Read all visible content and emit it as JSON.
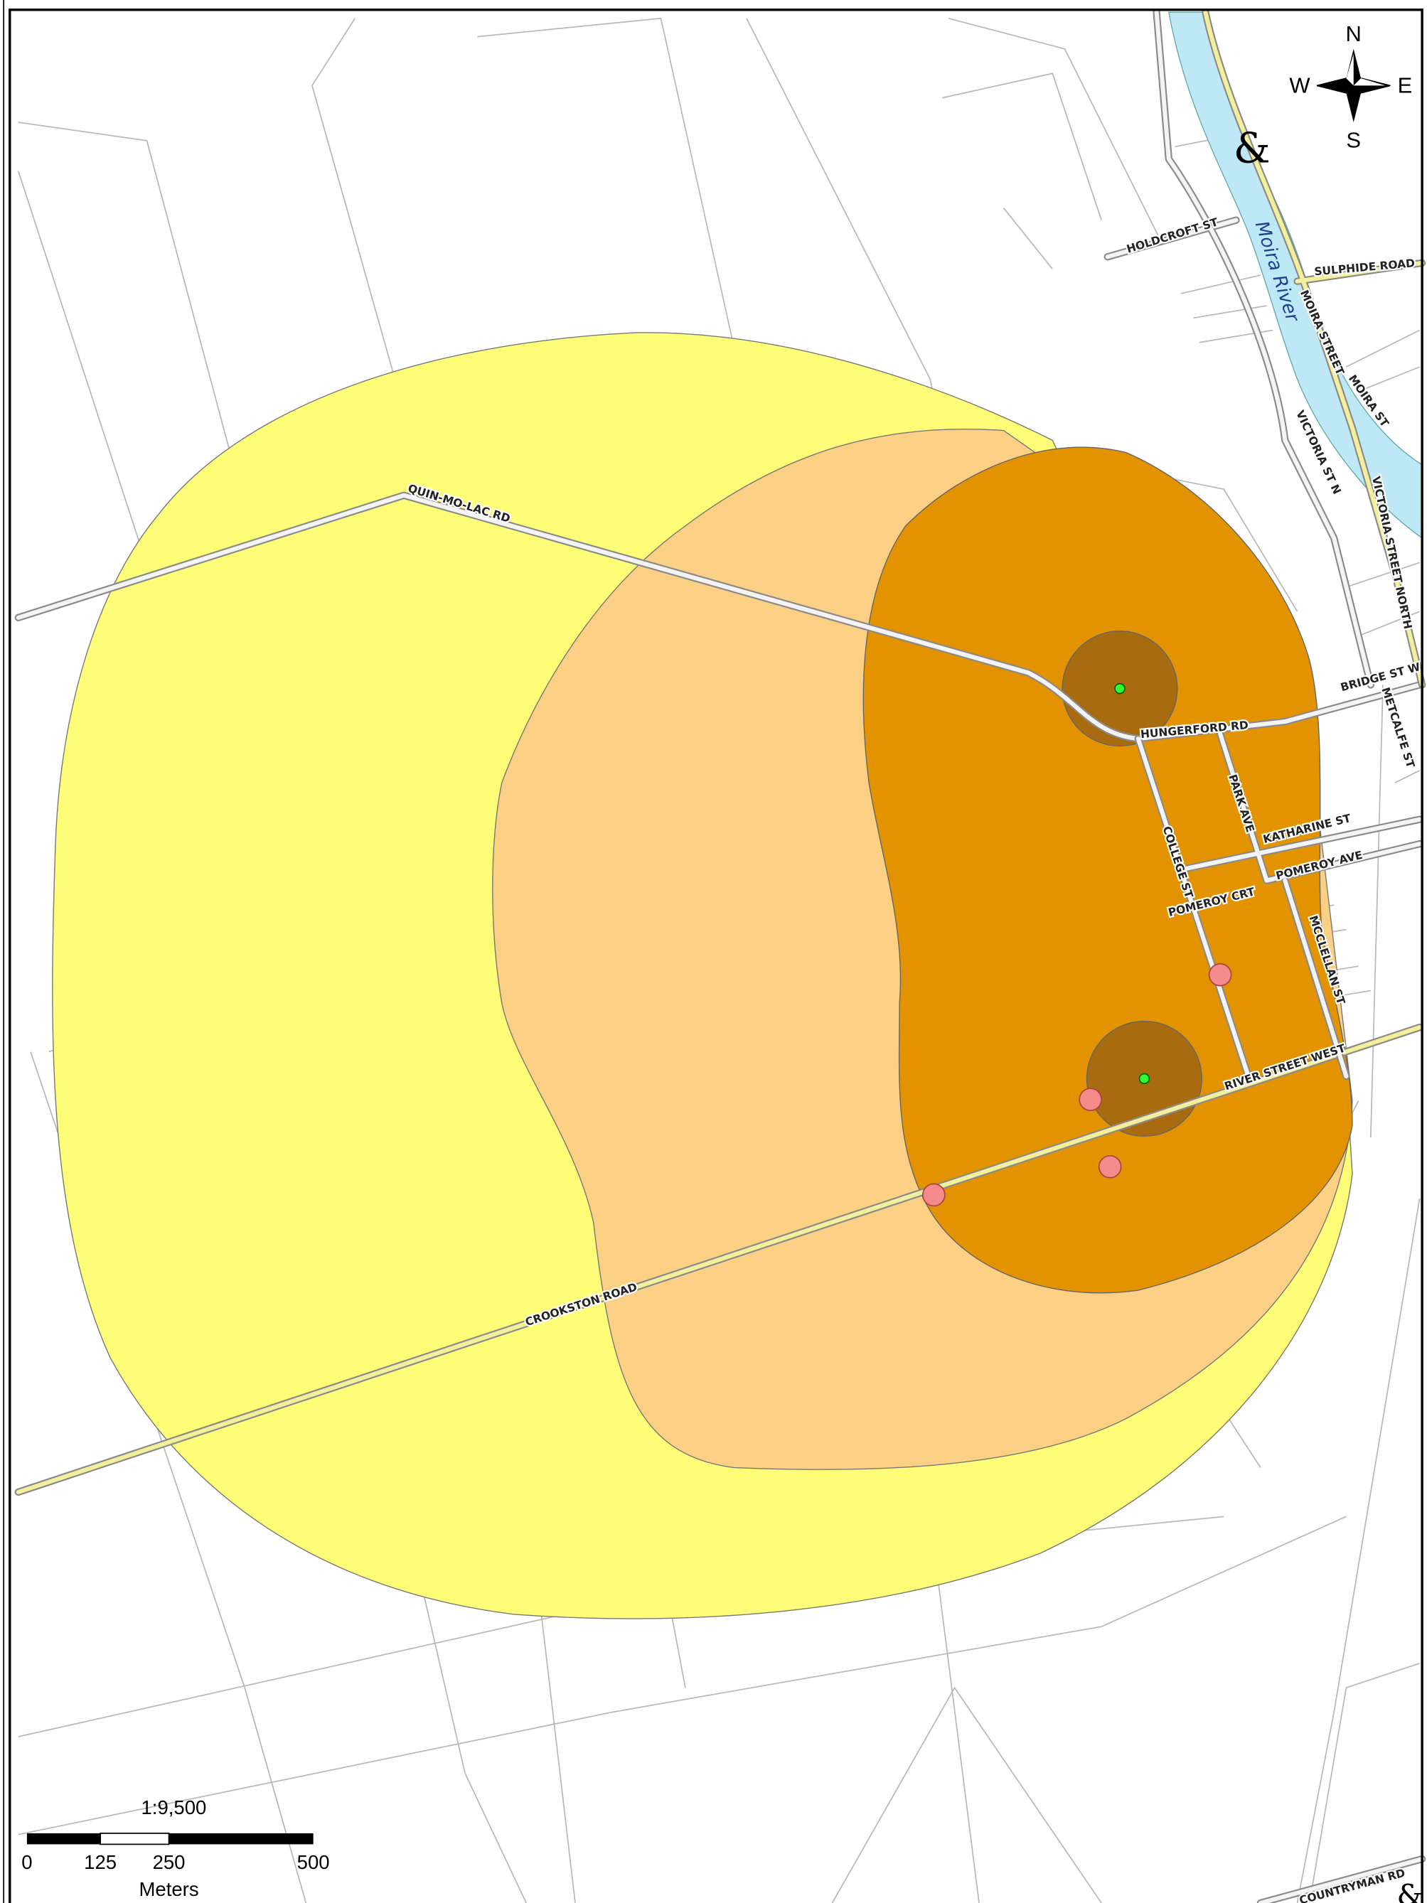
{
  "map": {
    "compass": {
      "n": "N",
      "e": "E",
      "s": "S",
      "w": "W"
    },
    "symbol": "&",
    "labels": [
      "QUIN-MO-LAC RD",
      "HUNGERFORD RD",
      "COLLEGE ST",
      "PARK AVE",
      "KATHARINE ST",
      "POMEROY AVE",
      "POMEROY CRT",
      "MCCLELLAN ST",
      "RIVER STREET WEST",
      "CROOKSTON ROAD",
      "BRIDGE ST W",
      "METCALFE ST",
      "HOLDCROFT ST",
      "SULPHIDE ROAD",
      "MOIRA STREET",
      "MOIRA ST",
      "VICTORIA ST N",
      "VICTORIA STREET NORTH",
      "Moira River",
      "COUNTRYMAN RD"
    ],
    "scale": {
      "ratio": "1:9,500",
      "ticks": [
        "0",
        "125",
        "250",
        "500"
      ],
      "unit": "Meters"
    }
  }
}
